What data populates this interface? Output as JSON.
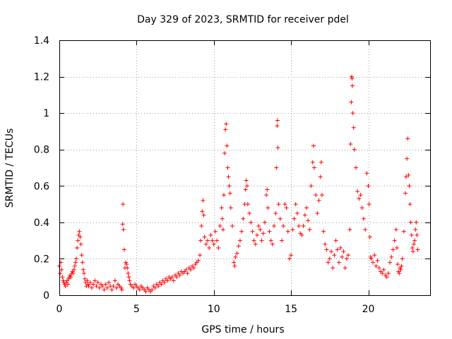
{
  "chart_data": {
    "type": "scatter",
    "title": "Day 329 of 2023, SRMTID for receiver pdel",
    "xlabel": "GPS time / hours",
    "ylabel": "SRMTID / TECUs",
    "xlim": [
      0,
      24
    ],
    "ylim": [
      0,
      1.4
    ],
    "xticks": [
      0,
      5,
      10,
      15,
      20
    ],
    "xtick_labels": [
      "0",
      "5",
      "10",
      "15",
      "20"
    ],
    "yticks": [
      0,
      0.2,
      0.4,
      0.6,
      0.8,
      1.0,
      1.2,
      1.4
    ],
    "ytick_labels": [
      "0",
      "0.2",
      "0.4",
      "0.6",
      "0.8",
      "1",
      "1.2",
      "1.4"
    ],
    "grid": true,
    "marker": "+",
    "color": "#ff0000",
    "series": [
      {
        "name": "SRMTID",
        "points": [
          [
            0.0,
            0.16
          ],
          [
            0.05,
            0.12
          ],
          [
            0.1,
            0.18
          ],
          [
            0.15,
            0.14
          ],
          [
            0.2,
            0.1
          ],
          [
            0.25,
            0.08
          ],
          [
            0.3,
            0.07
          ],
          [
            0.35,
            0.06
          ],
          [
            0.4,
            0.05
          ],
          [
            0.45,
            0.07
          ],
          [
            0.5,
            0.08
          ],
          [
            0.55,
            0.06
          ],
          [
            0.6,
            0.09
          ],
          [
            0.65,
            0.1
          ],
          [
            0.7,
            0.11
          ],
          [
            0.75,
            0.1
          ],
          [
            0.8,
            0.12
          ],
          [
            0.85,
            0.13
          ],
          [
            0.9,
            0.12
          ],
          [
            0.95,
            0.14
          ],
          [
            1.0,
            0.16
          ],
          [
            1.05,
            0.18
          ],
          [
            1.1,
            0.2
          ],
          [
            1.15,
            0.26
          ],
          [
            1.2,
            0.3
          ],
          [
            1.25,
            0.33
          ],
          [
            1.3,
            0.35
          ],
          [
            1.35,
            0.32
          ],
          [
            1.4,
            0.28
          ],
          [
            1.45,
            0.22
          ],
          [
            1.5,
            0.18
          ],
          [
            1.55,
            0.14
          ],
          [
            1.6,
            0.12
          ],
          [
            1.65,
            0.09
          ],
          [
            1.7,
            0.07
          ],
          [
            1.75,
            0.05
          ],
          [
            1.8,
            0.08
          ],
          [
            1.85,
            0.06
          ],
          [
            1.9,
            0.05
          ],
          [
            2.0,
            0.07
          ],
          [
            2.1,
            0.04
          ],
          [
            2.2,
            0.06
          ],
          [
            2.3,
            0.08
          ],
          [
            2.4,
            0.05
          ],
          [
            2.5,
            0.07
          ],
          [
            2.6,
            0.04
          ],
          [
            2.7,
            0.06
          ],
          [
            2.8,
            0.05
          ],
          [
            2.9,
            0.03
          ],
          [
            3.0,
            0.06
          ],
          [
            3.1,
            0.04
          ],
          [
            3.2,
            0.07
          ],
          [
            3.3,
            0.05
          ],
          [
            3.4,
            0.03
          ],
          [
            3.5,
            0.05
          ],
          [
            3.6,
            0.08
          ],
          [
            3.7,
            0.04
          ],
          [
            3.8,
            0.06
          ],
          [
            3.9,
            0.05
          ],
          [
            4.0,
            0.04
          ],
          [
            4.05,
            0.03
          ],
          [
            4.1,
            0.39
          ],
          [
            4.12,
            0.5
          ],
          [
            4.15,
            0.36
          ],
          [
            4.2,
            0.25
          ],
          [
            4.25,
            0.15
          ],
          [
            4.3,
            0.18
          ],
          [
            4.35,
            0.17
          ],
          [
            4.4,
            0.15
          ],
          [
            4.45,
            0.12
          ],
          [
            4.5,
            0.1
          ],
          [
            4.55,
            0.08
          ],
          [
            4.6,
            0.06
          ],
          [
            4.7,
            0.05
          ],
          [
            4.8,
            0.04
          ],
          [
            4.9,
            0.06
          ],
          [
            5.0,
            0.05
          ],
          [
            5.1,
            0.04
          ],
          [
            5.2,
            0.03
          ],
          [
            5.3,
            0.05
          ],
          [
            5.4,
            0.04
          ],
          [
            5.5,
            0.03
          ],
          [
            5.6,
            0.02
          ],
          [
            5.7,
            0.04
          ],
          [
            5.8,
            0.03
          ],
          [
            5.9,
            0.02
          ],
          [
            6.0,
            0.03
          ],
          [
            6.1,
            0.05
          ],
          [
            6.2,
            0.04
          ],
          [
            6.3,
            0.06
          ],
          [
            6.4,
            0.05
          ],
          [
            6.5,
            0.07
          ],
          [
            6.6,
            0.06
          ],
          [
            6.7,
            0.08
          ],
          [
            6.8,
            0.07
          ],
          [
            6.9,
            0.09
          ],
          [
            7.0,
            0.08
          ],
          [
            7.1,
            0.1
          ],
          [
            7.2,
            0.09
          ],
          [
            7.3,
            0.1
          ],
          [
            7.4,
            0.08
          ],
          [
            7.5,
            0.11
          ],
          [
            7.6,
            0.1
          ],
          [
            7.7,
            0.12
          ],
          [
            7.8,
            0.11
          ],
          [
            7.9,
            0.13
          ],
          [
            8.0,
            0.12
          ],
          [
            8.1,
            0.13
          ],
          [
            8.2,
            0.14
          ],
          [
            8.3,
            0.12
          ],
          [
            8.4,
            0.15
          ],
          [
            8.5,
            0.14
          ],
          [
            8.6,
            0.16
          ],
          [
            8.7,
            0.15
          ],
          [
            8.8,
            0.17
          ],
          [
            8.9,
            0.18
          ],
          [
            9.0,
            0.19
          ],
          [
            9.1,
            0.22
          ],
          [
            9.15,
            0.3
          ],
          [
            9.2,
            0.38
          ],
          [
            9.25,
            0.46
          ],
          [
            9.3,
            0.52
          ],
          [
            9.35,
            0.44
          ],
          [
            9.4,
            0.32
          ],
          [
            9.5,
            0.28
          ],
          [
            9.6,
            0.3
          ],
          [
            9.7,
            0.26
          ],
          [
            9.8,
            0.33
          ],
          [
            9.9,
            0.3
          ],
          [
            10.0,
            0.28
          ],
          [
            10.1,
            0.35
          ],
          [
            10.2,
            0.3
          ],
          [
            10.3,
            0.26
          ],
          [
            10.4,
            0.38
          ],
          [
            10.5,
            0.48
          ],
          [
            10.55,
            0.42
          ],
          [
            10.6,
            0.36
          ],
          [
            10.65,
            0.55
          ],
          [
            10.7,
            0.78
          ],
          [
            10.75,
            0.91
          ],
          [
            10.8,
            0.94
          ],
          [
            10.85,
            0.82
          ],
          [
            10.9,
            0.7
          ],
          [
            10.95,
            0.65
          ],
          [
            11.0,
            0.6
          ],
          [
            11.05,
            0.56
          ],
          [
            11.1,
            0.48
          ],
          [
            11.2,
            0.38
          ],
          [
            11.3,
            0.18
          ],
          [
            11.35,
            0.16
          ],
          [
            11.4,
            0.21
          ],
          [
            11.5,
            0.23
          ],
          [
            11.6,
            0.27
          ],
          [
            11.7,
            0.3
          ],
          [
            11.8,
            0.35
          ],
          [
            11.9,
            0.42
          ],
          [
            12.0,
            0.5
          ],
          [
            12.05,
            0.58
          ],
          [
            12.1,
            0.63
          ],
          [
            12.15,
            0.6
          ],
          [
            12.2,
            0.5
          ],
          [
            12.3,
            0.45
          ],
          [
            12.4,
            0.4
          ],
          [
            12.5,
            0.35
          ],
          [
            12.6,
            0.3
          ],
          [
            12.7,
            0.28
          ],
          [
            12.8,
            0.33
          ],
          [
            12.9,
            0.38
          ],
          [
            13.0,
            0.36
          ],
          [
            13.1,
            0.3
          ],
          [
            13.2,
            0.34
          ],
          [
            13.3,
            0.4
          ],
          [
            13.4,
            0.55
          ],
          [
            13.45,
            0.58
          ],
          [
            13.5,
            0.48
          ],
          [
            13.6,
            0.35
          ],
          [
            13.7,
            0.3
          ],
          [
            13.8,
            0.28
          ],
          [
            13.9,
            0.38
          ],
          [
            14.0,
            0.45
          ],
          [
            14.05,
            0.7
          ],
          [
            14.1,
            0.93
          ],
          [
            14.12,
            0.96
          ],
          [
            14.15,
            0.81
          ],
          [
            14.2,
            0.5
          ],
          [
            14.3,
            0.42
          ],
          [
            14.4,
            0.3
          ],
          [
            14.5,
            0.38
          ],
          [
            14.6,
            0.5
          ],
          [
            14.7,
            0.48
          ],
          [
            14.8,
            0.35
          ],
          [
            14.9,
            0.2
          ],
          [
            15.0,
            0.22
          ],
          [
            15.1,
            0.36
          ],
          [
            15.2,
            0.42
          ],
          [
            15.3,
            0.5
          ],
          [
            15.4,
            0.45
          ],
          [
            15.5,
            0.38
          ],
          [
            15.6,
            0.34
          ],
          [
            15.7,
            0.33
          ],
          [
            15.8,
            0.38
          ],
          [
            15.9,
            0.44
          ],
          [
            16.0,
            0.48
          ],
          [
            16.1,
            0.41
          ],
          [
            16.2,
            0.36
          ],
          [
            16.3,
            0.6
          ],
          [
            16.4,
            0.73
          ],
          [
            16.45,
            0.82
          ],
          [
            16.5,
            0.7
          ],
          [
            16.6,
            0.55
          ],
          [
            16.7,
            0.45
          ],
          [
            16.8,
            0.52
          ],
          [
            16.9,
            0.65
          ],
          [
            16.95,
            0.73
          ],
          [
            17.0,
            0.55
          ],
          [
            17.1,
            0.35
          ],
          [
            17.2,
            0.28
          ],
          [
            17.3,
            0.25
          ],
          [
            17.4,
            0.18
          ],
          [
            17.5,
            0.2
          ],
          [
            17.6,
            0.24
          ],
          [
            17.7,
            0.15
          ],
          [
            17.8,
            0.22
          ],
          [
            17.9,
            0.3
          ],
          [
            18.0,
            0.25
          ],
          [
            18.1,
            0.18
          ],
          [
            18.2,
            0.26
          ],
          [
            18.3,
            0.21
          ],
          [
            18.4,
            0.24
          ],
          [
            18.5,
            0.15
          ],
          [
            18.6,
            0.2
          ],
          [
            18.7,
            0.22
          ],
          [
            18.8,
            0.36
          ],
          [
            18.85,
            0.83
          ],
          [
            18.9,
            1.06
          ],
          [
            18.92,
            1.2
          ],
          [
            18.95,
            1.19
          ],
          [
            18.97,
            1.15
          ],
          [
            19.0,
            1.0
          ],
          [
            19.05,
            0.92
          ],
          [
            19.1,
            0.8
          ],
          [
            19.2,
            0.7
          ],
          [
            19.3,
            0.57
          ],
          [
            19.4,
            0.53
          ],
          [
            19.5,
            0.55
          ],
          [
            19.6,
            0.48
          ],
          [
            19.7,
            0.42
          ],
          [
            19.8,
            0.36
          ],
          [
            19.9,
            0.67
          ],
          [
            20.0,
            0.6
          ],
          [
            20.05,
            0.5
          ],
          [
            20.1,
            0.32
          ],
          [
            20.15,
            0.21
          ],
          [
            20.2,
            0.2
          ],
          [
            20.3,
            0.18
          ],
          [
            20.4,
            0.22
          ],
          [
            20.5,
            0.16
          ],
          [
            20.6,
            0.19
          ],
          [
            20.7,
            0.15
          ],
          [
            20.8,
            0.13
          ],
          [
            20.9,
            0.12
          ],
          [
            21.0,
            0.14
          ],
          [
            21.1,
            0.11
          ],
          [
            21.2,
            0.1
          ],
          [
            21.3,
            0.12
          ],
          [
            21.4,
            0.18
          ],
          [
            21.5,
            0.21
          ],
          [
            21.6,
            0.25
          ],
          [
            21.7,
            0.3
          ],
          [
            21.8,
            0.36
          ],
          [
            21.85,
            0.26
          ],
          [
            21.9,
            0.17
          ],
          [
            21.95,
            0.13
          ],
          [
            22.0,
            0.12
          ],
          [
            22.05,
            0.15
          ],
          [
            22.1,
            0.14
          ],
          [
            22.15,
            0.16
          ],
          [
            22.2,
            0.2
          ],
          [
            22.3,
            0.35
          ],
          [
            22.4,
            0.56
          ],
          [
            22.45,
            0.65
          ],
          [
            22.5,
            0.75
          ],
          [
            22.55,
            0.86
          ],
          [
            22.6,
            0.66
          ],
          [
            22.65,
            0.6
          ],
          [
            22.7,
            0.5
          ],
          [
            22.75,
            0.4
          ],
          [
            22.8,
            0.33
          ],
          [
            22.85,
            0.26
          ],
          [
            22.9,
            0.24
          ],
          [
            22.95,
            0.28
          ],
          [
            23.0,
            0.3
          ],
          [
            23.05,
            0.36
          ],
          [
            23.1,
            0.4
          ],
          [
            23.15,
            0.33
          ],
          [
            23.2,
            0.25
          ]
        ]
      }
    ]
  }
}
